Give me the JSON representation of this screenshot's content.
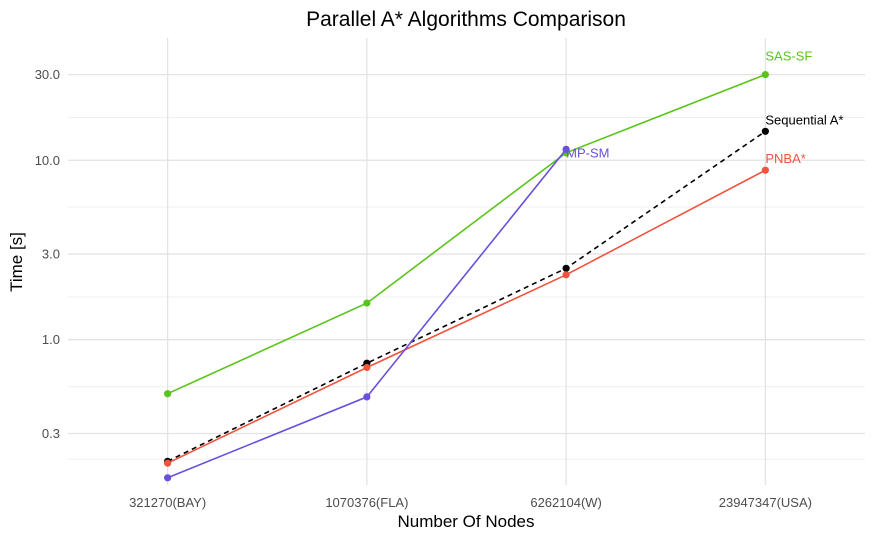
{
  "chart_data": {
    "type": "line",
    "title": "Parallel A* Algorithms Comparison",
    "xlabel": "Number Of Nodes",
    "ylabel": "Time [s]",
    "y_scale": "log10",
    "ylim": [
      0.155,
      48
    ],
    "y_ticks": [
      0.3,
      1.0,
      3.0,
      10.0,
      30.0
    ],
    "y_tick_labels": [
      "0.3",
      "1.0",
      "3.0",
      "10.0",
      "30.0"
    ],
    "categories": [
      "321270(BAY)",
      "1070376(FLA)",
      "6262104(W)",
      "23947347(USA)"
    ],
    "grid": true,
    "legend": "none",
    "series": [
      {
        "name": "SAS-SF",
        "color": "#5bc41a",
        "dashed": false,
        "values": [
          0.5,
          1.6,
          11.0,
          30.0
        ]
      },
      {
        "name": "Sequential A*",
        "color": "#000000",
        "dashed": true,
        "values": [
          0.21,
          0.74,
          2.5,
          14.5
        ]
      },
      {
        "name": "PNBA*",
        "color": "#f0533f",
        "dashed": false,
        "values": [
          0.205,
          0.7,
          2.3,
          8.8
        ]
      },
      {
        "name": "MP-SM",
        "color": "#6a4fde",
        "dashed": false,
        "values": [
          0.17,
          0.48,
          11.5,
          null
        ]
      }
    ]
  }
}
